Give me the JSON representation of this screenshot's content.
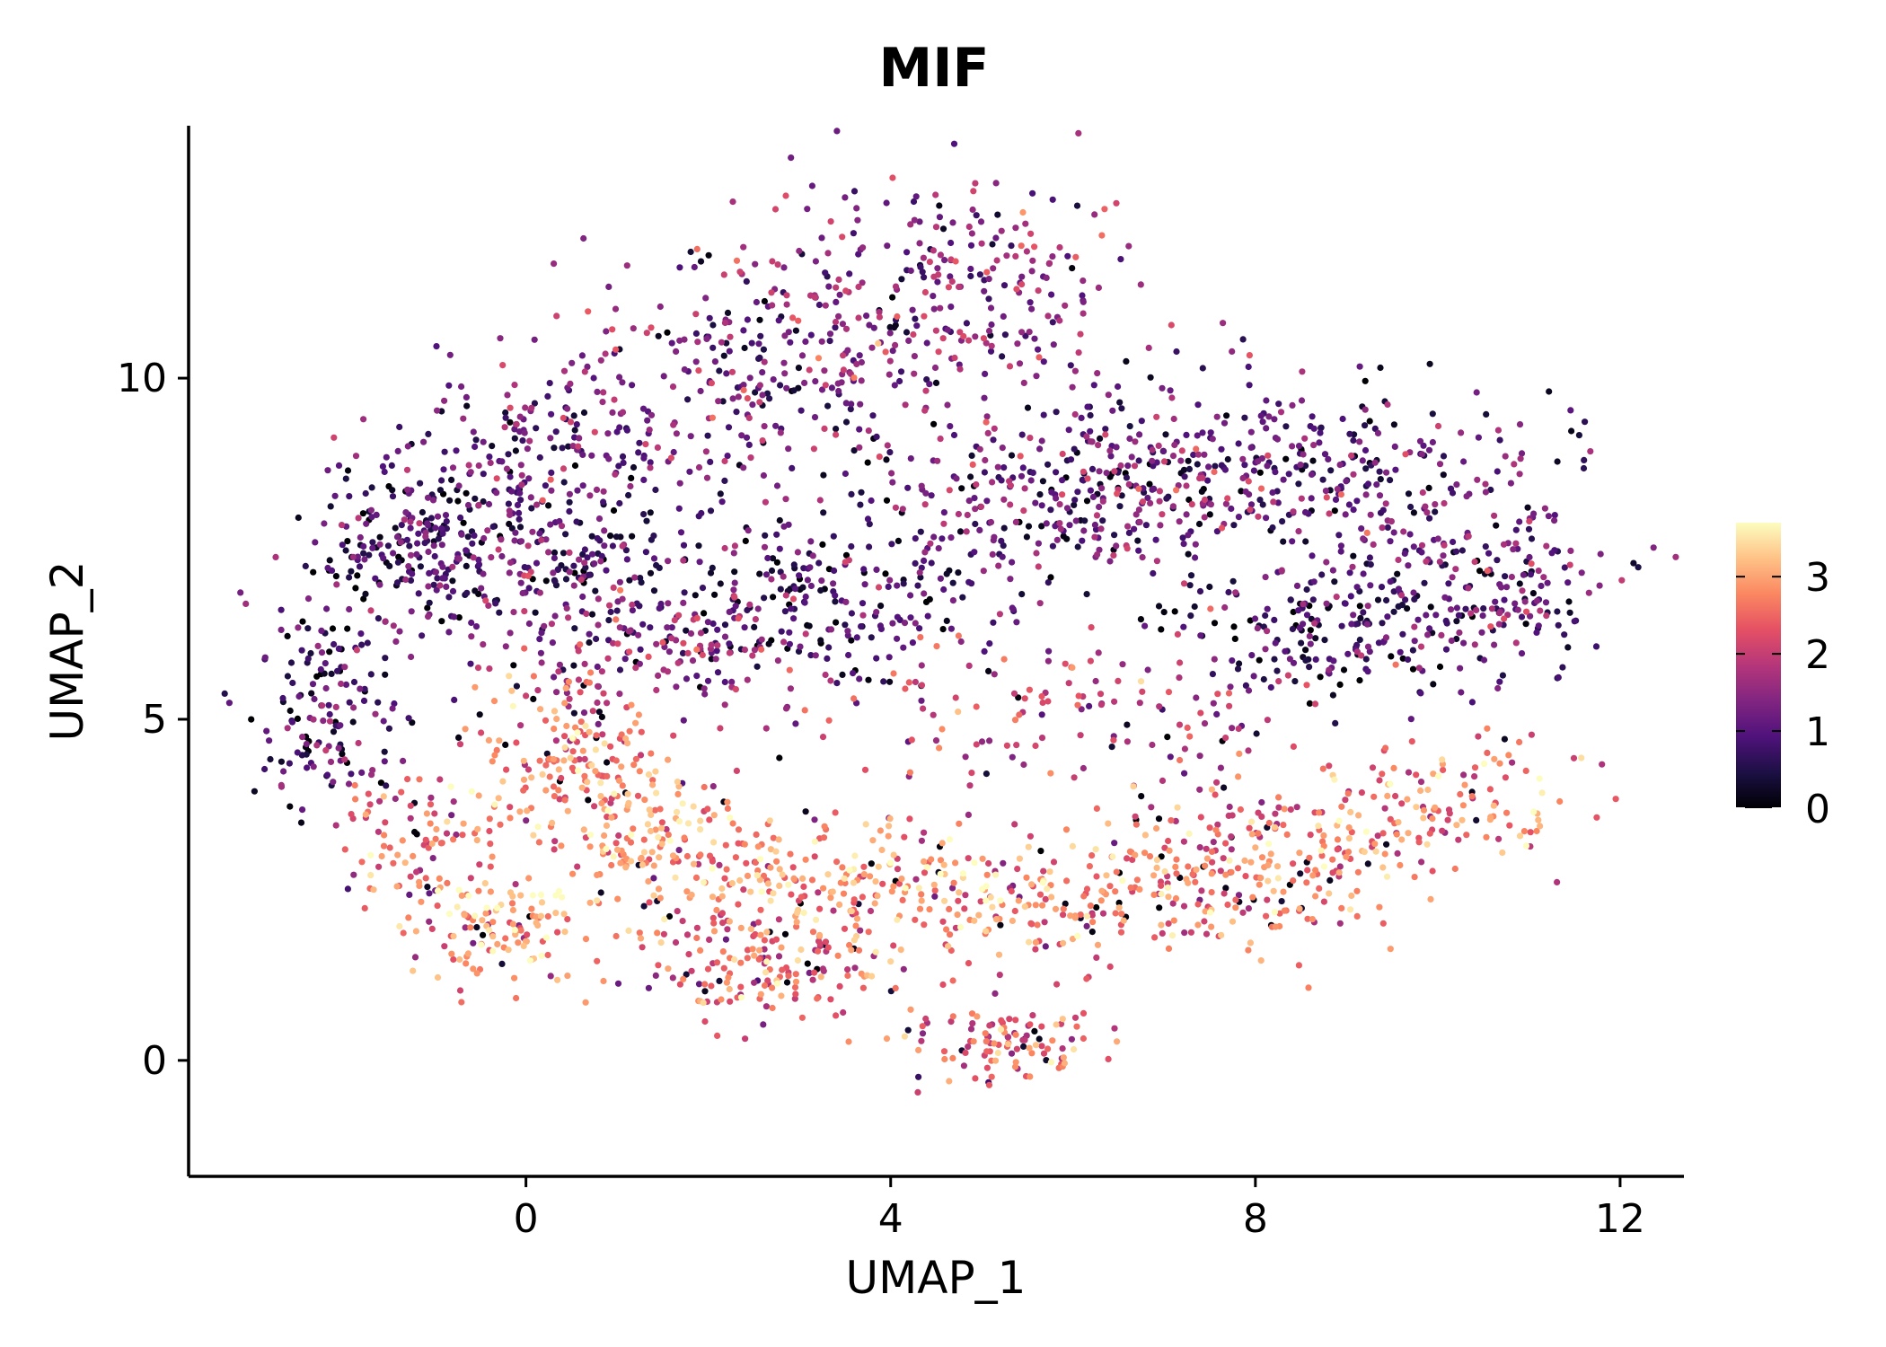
{
  "chart_data": {
    "type": "scatter",
    "title": "MIF",
    "xlabel": "UMAP_1",
    "ylabel": "UMAP_2",
    "xlim": [
      -3.7,
      12.7
    ],
    "ylim": [
      -1.7,
      13.7
    ],
    "xticks": [
      0,
      4,
      8,
      12
    ],
    "yticks": [
      0,
      5,
      10
    ],
    "grid": false,
    "legend": {
      "type": "colorbar",
      "placement": "right",
      "ticks": [
        0,
        1,
        2,
        3
      ],
      "range": [
        0,
        3.7
      ],
      "colormap": "magma",
      "colors": [
        "#000004",
        "#1c1044",
        "#4f127b",
        "#812581",
        "#b5367a",
        "#e55064",
        "#fb8761",
        "#fec287",
        "#fcfdbf"
      ]
    },
    "n_points_rendered": 4300,
    "regions": [
      {
        "x": 4.5,
        "y": 11.3,
        "sx": 1.2,
        "sy": 0.9,
        "expr": 1.5,
        "weight": 0.08
      },
      {
        "x": 2.6,
        "y": 10.0,
        "sx": 1.1,
        "sy": 0.8,
        "expr": 1.2,
        "weight": 0.06
      },
      {
        "x": 0.3,
        "y": 9.0,
        "sx": 1.0,
        "sy": 0.6,
        "expr": 1.2,
        "weight": 0.05
      },
      {
        "x": -1.2,
        "y": 7.6,
        "sx": 0.7,
        "sy": 0.6,
        "expr": 0.8,
        "weight": 0.06
      },
      {
        "x": 0.2,
        "y": 7.2,
        "sx": 0.9,
        "sy": 0.6,
        "expr": 0.9,
        "weight": 0.05
      },
      {
        "x": -2.2,
        "y": 5.2,
        "sx": 0.4,
        "sy": 0.8,
        "expr": 0.9,
        "weight": 0.04
      },
      {
        "x": 1.5,
        "y": 6.0,
        "sx": 0.9,
        "sy": 0.5,
        "expr": 1.5,
        "weight": 0.04
      },
      {
        "x": 3.3,
        "y": 6.8,
        "sx": 1.0,
        "sy": 0.6,
        "expr": 0.8,
        "weight": 0.06
      },
      {
        "x": 5.8,
        "y": 8.2,
        "sx": 1.3,
        "sy": 0.6,
        "expr": 1.2,
        "weight": 0.08
      },
      {
        "x": 8.3,
        "y": 8.8,
        "sx": 1.3,
        "sy": 0.6,
        "expr": 1.1,
        "weight": 0.07
      },
      {
        "x": 9.8,
        "y": 7.4,
        "sx": 1.1,
        "sy": 0.8,
        "expr": 1.0,
        "weight": 0.06
      },
      {
        "x": 8.7,
        "y": 6.2,
        "sx": 0.8,
        "sy": 0.5,
        "expr": 0.8,
        "weight": 0.04
      },
      {
        "x": 11.0,
        "y": 6.6,
        "sx": 0.4,
        "sy": 0.6,
        "expr": 1.2,
        "weight": 0.02
      },
      {
        "x": 6.0,
        "y": 5.0,
        "sx": 1.5,
        "sy": 0.7,
        "expr": 2.0,
        "weight": 0.04
      },
      {
        "x": 0.5,
        "y": 4.5,
        "sx": 0.5,
        "sy": 0.6,
        "expr": 2.6,
        "weight": 0.04
      },
      {
        "x": -1.2,
        "y": 3.2,
        "sx": 0.5,
        "sy": 0.6,
        "expr": 2.5,
        "weight": 0.03
      },
      {
        "x": -0.3,
        "y": 1.9,
        "sx": 0.5,
        "sy": 0.4,
        "expr": 2.8,
        "weight": 0.03
      },
      {
        "x": 1.3,
        "y": 3.3,
        "sx": 0.6,
        "sy": 0.5,
        "expr": 2.9,
        "weight": 0.04
      },
      {
        "x": 3.5,
        "y": 2.5,
        "sx": 1.3,
        "sy": 0.5,
        "expr": 2.8,
        "weight": 0.07
      },
      {
        "x": 6.3,
        "y": 2.4,
        "sx": 1.2,
        "sy": 0.5,
        "expr": 2.7,
        "weight": 0.06
      },
      {
        "x": 8.3,
        "y": 3.1,
        "sx": 1.0,
        "sy": 0.5,
        "expr": 2.6,
        "weight": 0.05
      },
      {
        "x": 10.3,
        "y": 3.8,
        "sx": 0.7,
        "sy": 0.5,
        "expr": 2.6,
        "weight": 0.03
      },
      {
        "x": 2.6,
        "y": 1.3,
        "sx": 0.7,
        "sy": 0.4,
        "expr": 2.4,
        "weight": 0.04
      },
      {
        "x": 5.3,
        "y": 0.3,
        "sx": 0.6,
        "sy": 0.3,
        "expr": 2.5,
        "weight": 0.03
      }
    ]
  }
}
